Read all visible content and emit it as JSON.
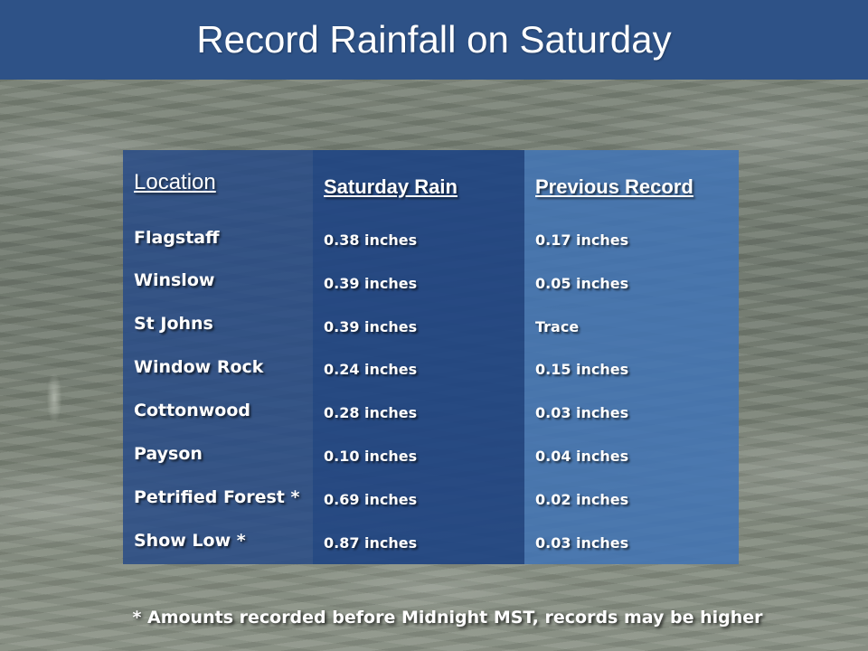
{
  "title": "Record Rainfall on Saturday",
  "table": {
    "headers": {
      "location": "Location",
      "saturday_rain": "Saturday Rain",
      "previous_record": "Previous Record"
    },
    "rows": [
      {
        "location": "Flagstaff",
        "saturday_rain": "0.38 inches",
        "previous_record": "0.17 inches"
      },
      {
        "location": "Winslow",
        "saturday_rain": "0.39 inches",
        "previous_record": "0.05 inches"
      },
      {
        "location": "St Johns",
        "saturday_rain": "0.39 inches",
        "previous_record": "Trace"
      },
      {
        "location": "Window Rock",
        "saturday_rain": "0.24 inches",
        "previous_record": "0.15 inches"
      },
      {
        "location": "Cottonwood",
        "saturday_rain": "0.28 inches",
        "previous_record": "0.03 inches"
      },
      {
        "location": "Payson",
        "saturday_rain": "0.10 inches",
        "previous_record": "0.04 inches"
      },
      {
        "location": "Petrified Forest *",
        "saturday_rain": "0.69 inches",
        "previous_record": "0.02 inches"
      },
      {
        "location": "Show Low *",
        "saturday_rain": "0.87 inches",
        "previous_record": "0.03 inches"
      }
    ]
  },
  "footnote": "* Amounts recorded before Midnight MST, records may be higher",
  "colors": {
    "title_bar": "#2e5287",
    "location_column": "#284b87",
    "saturday_column": "#204482",
    "previous_column": "#4274b4"
  }
}
